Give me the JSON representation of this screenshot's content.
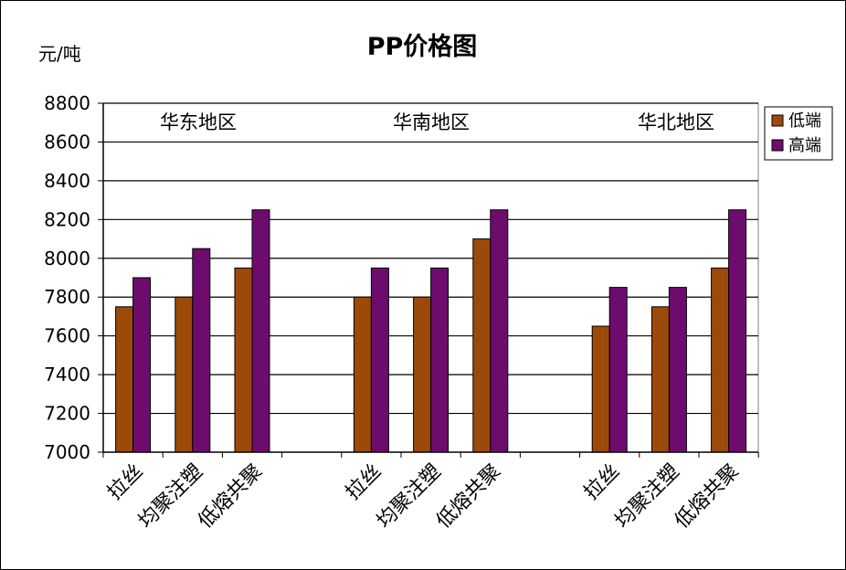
{
  "chart_data": {
    "type": "bar",
    "title": "PP价格图",
    "ylabel": "元/吨",
    "ylim": [
      7000,
      8800
    ],
    "yticks": [
      7000,
      7200,
      7400,
      7600,
      7800,
      8000,
      8200,
      8400,
      8600,
      8800
    ],
    "grid": true,
    "legend_position": "right",
    "categories": [
      "拉丝",
      "均聚注塑",
      "低熔共聚",
      "拉丝",
      "均聚注塑",
      "低熔共聚",
      "拉丝",
      "均聚注塑",
      "低熔共聚"
    ],
    "groups": [
      {
        "name": "华东地区",
        "categories": [
          "拉丝",
          "均聚注塑",
          "低熔共聚"
        ]
      },
      {
        "name": "华南地区",
        "categories": [
          "拉丝",
          "均聚注塑",
          "低熔共聚"
        ]
      },
      {
        "name": "华北地区",
        "categories": [
          "拉丝",
          "均聚注塑",
          "低熔共聚"
        ]
      }
    ],
    "series": [
      {
        "name": "低端",
        "color": "#9C4A0A",
        "values": [
          7750,
          7800,
          7950,
          7800,
          7800,
          8100,
          7650,
          7750,
          7950
        ]
      },
      {
        "name": "高端",
        "color": "#6E0C6E",
        "values": [
          7900,
          8050,
          8250,
          7950,
          7950,
          8250,
          7850,
          7850,
          8250
        ]
      }
    ]
  }
}
